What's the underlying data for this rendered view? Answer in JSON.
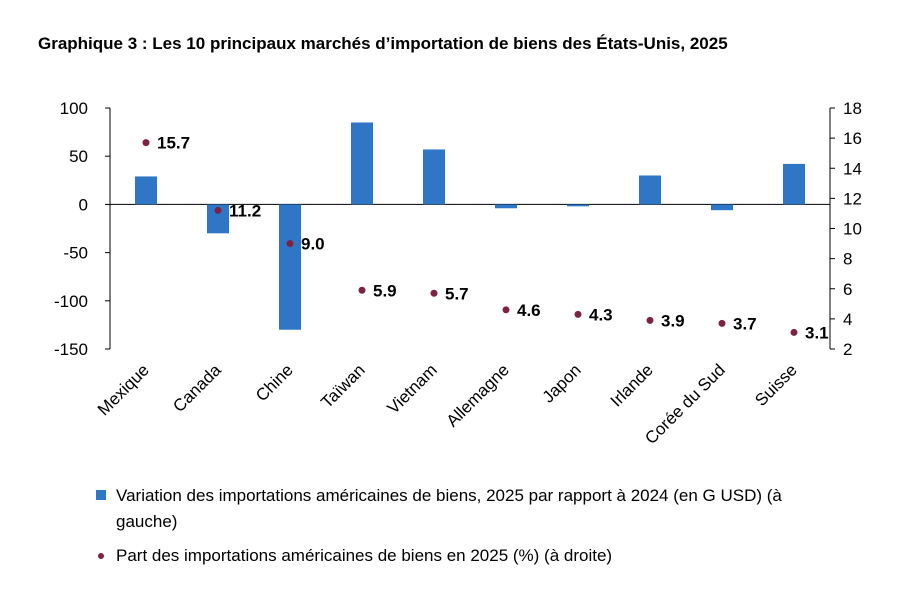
{
  "title": "Graphique 3 : Les 10 principaux marchés d’importation de biens des États-Unis, 2025",
  "colors": {
    "bar": "#2f77c6",
    "dot": "#7f2240",
    "axis": "#000000"
  },
  "legend": {
    "bar_label": "Variation des importations américaines de biens, 2025 par rapport à 2024 (en G USD) (à gauche)",
    "dot_label": "Part des importations américaines de biens en 2025 (%) (à droite)"
  },
  "chart_data": {
    "type": "bar+scatter",
    "title": "Graphique 3 : Les 10 principaux marchés d’importation de biens des États-Unis, 2025",
    "categories": [
      "Mexique",
      "Canada",
      "Chine",
      "Taïwan",
      "Vietnam",
      "Allemagne",
      "Japon",
      "Irlande",
      "Corée du Sud",
      "Suisse"
    ],
    "series": [
      {
        "name": "Variation des importations américaines de biens, 2025 par rapport à 2024 (en G USD) (à gauche)",
        "type": "bar",
        "axis": "left",
        "values": [
          29,
          -30,
          -130,
          85,
          57,
          -4,
          -2,
          30,
          -6,
          42
        ]
      },
      {
        "name": "Part des importations américaines de biens en 2025 (%) (à droite)",
        "type": "scatter",
        "axis": "right",
        "values": [
          15.7,
          11.2,
          9.0,
          5.9,
          5.7,
          4.6,
          4.3,
          3.9,
          3.7,
          3.1
        ],
        "labels": [
          "15.7",
          "11.2",
          "9.0",
          "5.9",
          "5.7",
          "4.6",
          "4.3",
          "3.9",
          "3.7",
          "3.1"
        ]
      }
    ],
    "y_left": {
      "min": -150,
      "max": 100,
      "ticks": [
        "100",
        "50",
        "0",
        "-50",
        "-100",
        "-150"
      ]
    },
    "y_right": {
      "min": 2,
      "max": 18,
      "ticks": [
        "18",
        "16",
        "14",
        "12",
        "10",
        "8",
        "6",
        "4",
        "2"
      ]
    },
    "grid": false,
    "legend_position": "bottom"
  }
}
